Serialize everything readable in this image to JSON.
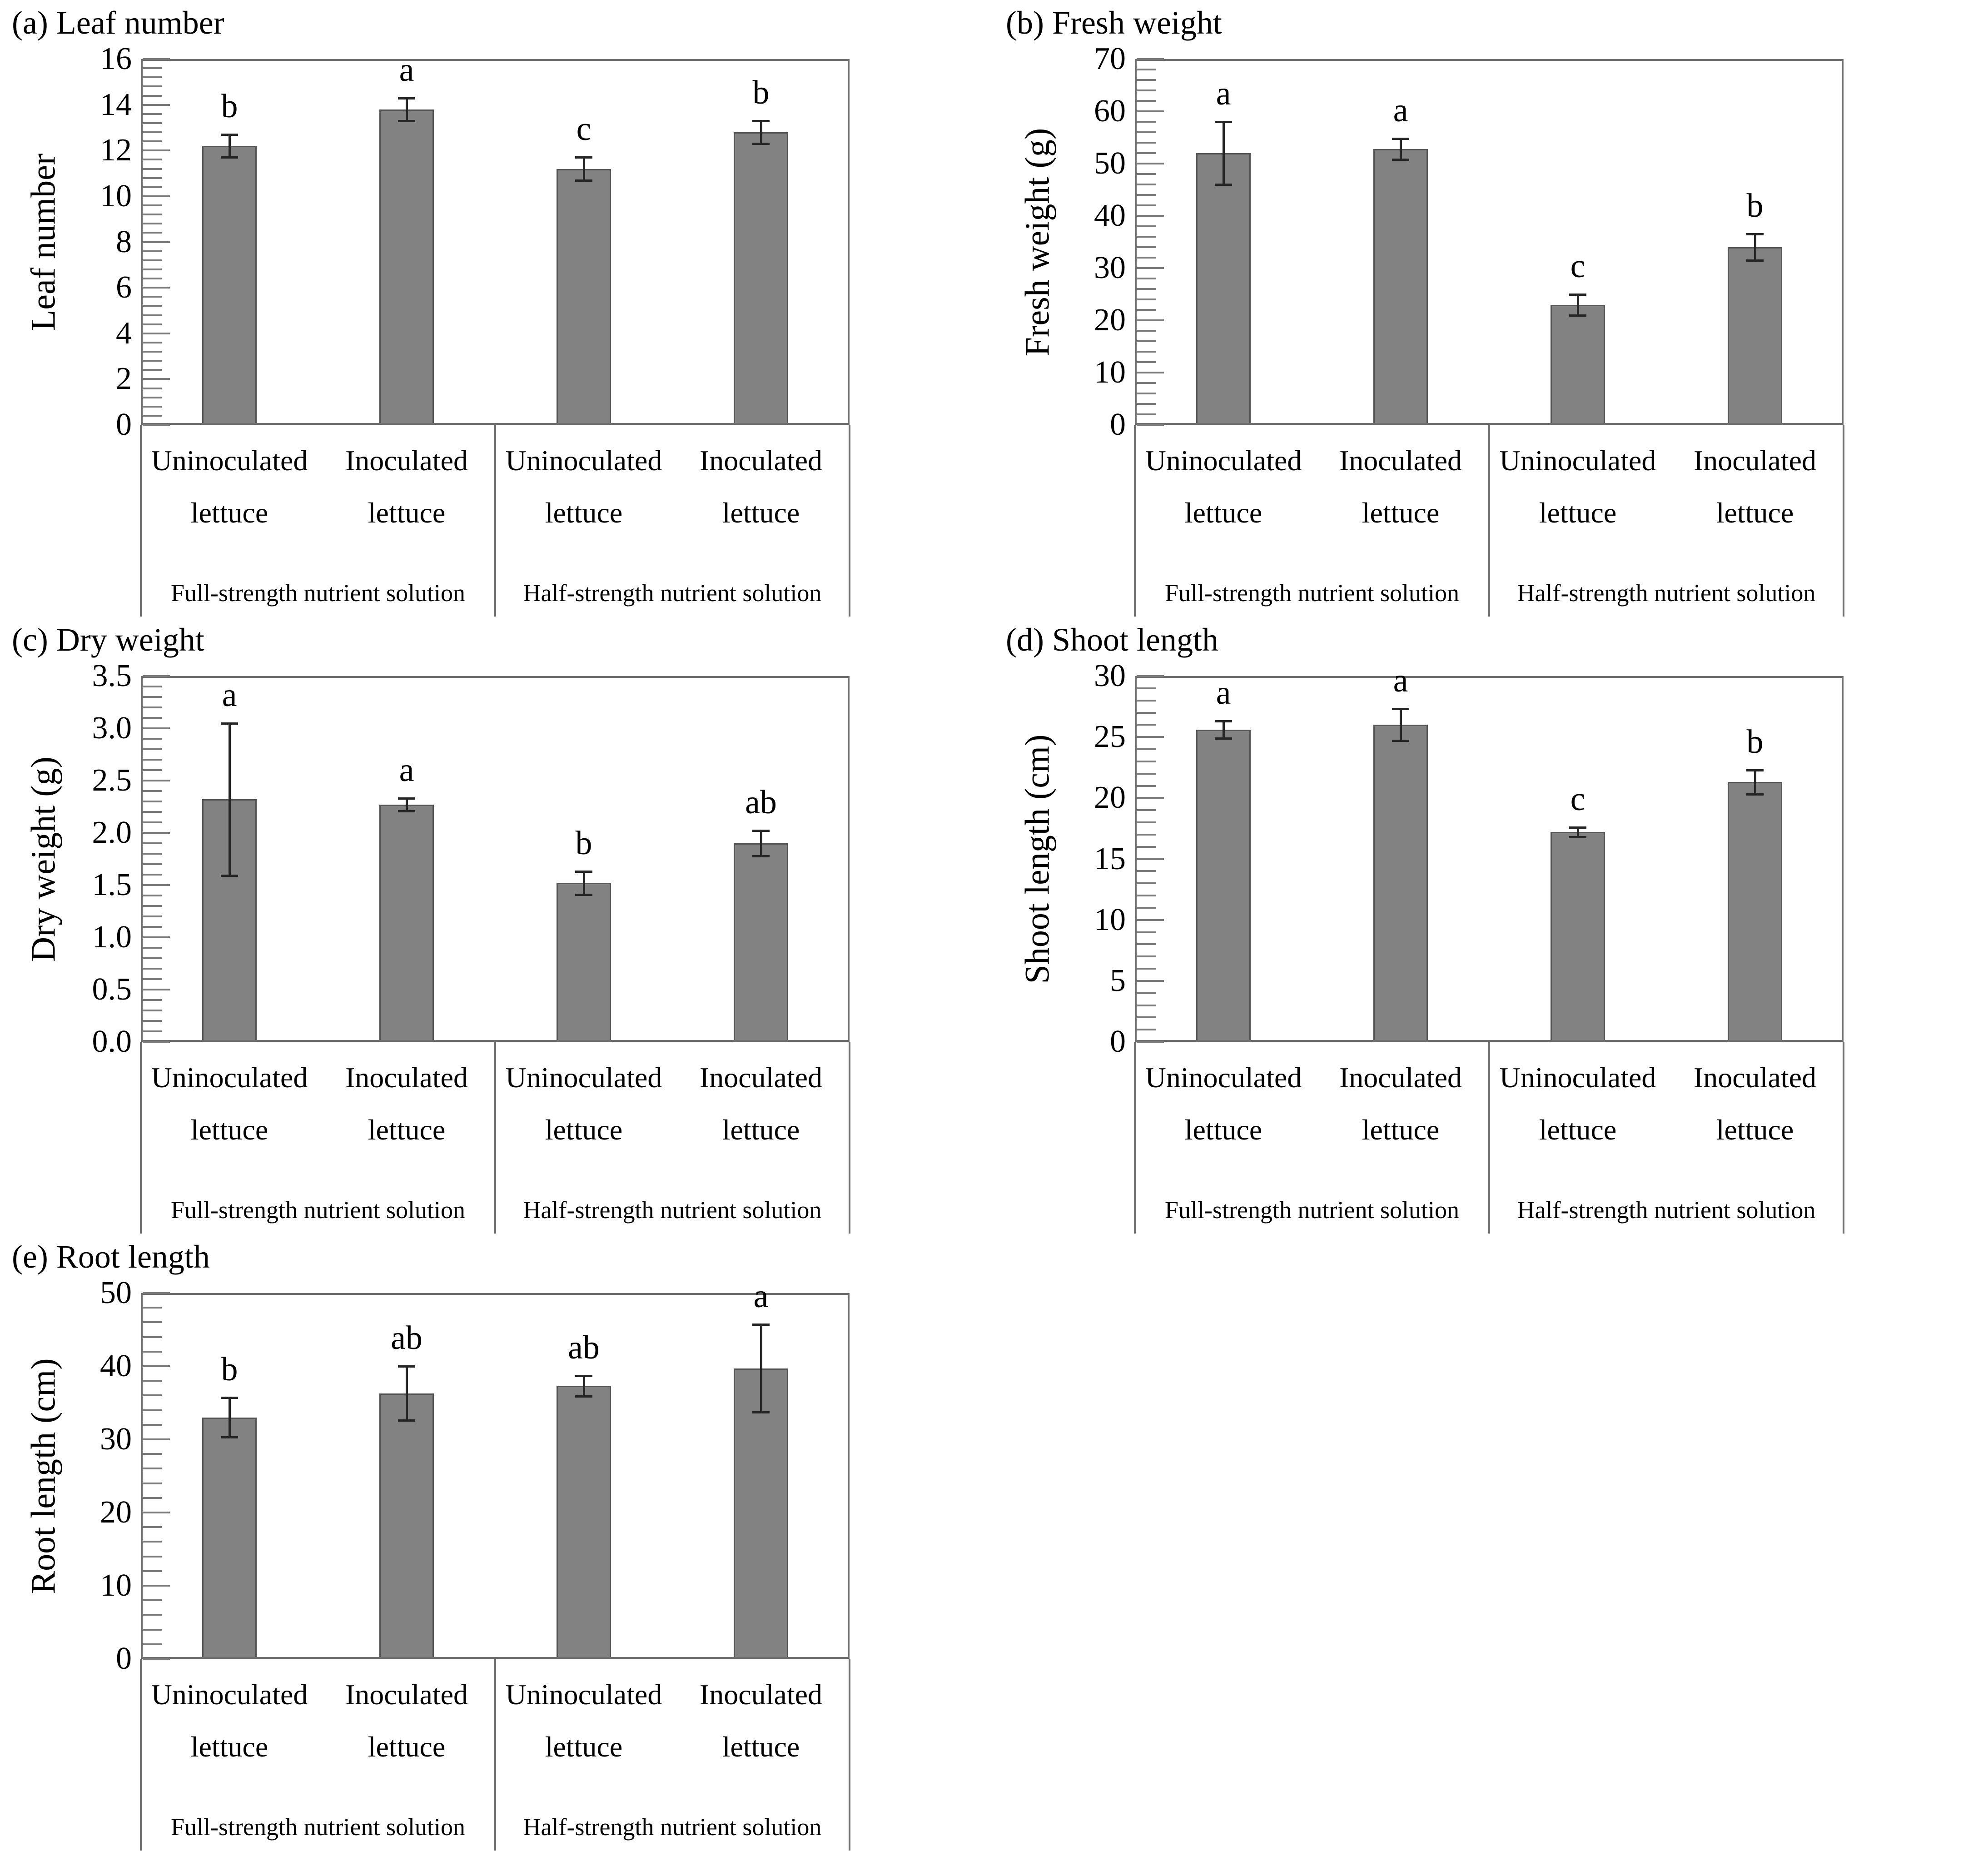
{
  "page": {
    "background": "#ffffff"
  },
  "colors": {
    "bar_fill": "#828282",
    "bar_border": "#555555",
    "frame": "#6e6e6e",
    "tick": "#7a7a7a",
    "error_bar": "#262626",
    "text": "#000000"
  },
  "chart_data": [
    {
      "type": "bar",
      "title": "(a) Leaf number",
      "ylabel": "Leaf number",
      "ylim": [
        0,
        16
      ],
      "ytick_step": 2,
      "minor_tick_step": 0.4,
      "tick_label_decimals": 0,
      "grid": "off",
      "legend": "none",
      "categories": [
        "Uninoculated lettuce",
        "Inoculated lettuce",
        "Uninoculated lettuce",
        "Inoculated lettuce"
      ],
      "group_labels": [
        "Full-strength nutrient solution",
        "Half-strength nutrient solution"
      ],
      "values": [
        12.2,
        13.8,
        11.2,
        12.8
      ],
      "errors": [
        0.5,
        0.5,
        0.5,
        0.5
      ],
      "sig_letters": [
        "b",
        "a",
        "c",
        "b"
      ]
    },
    {
      "type": "bar",
      "title": "(b) Fresh weight",
      "ylabel": "Fresh weight (g)",
      "ylim": [
        0,
        70
      ],
      "ytick_step": 10,
      "minor_tick_step": 2,
      "tick_label_decimals": 0,
      "grid": "off",
      "legend": "none",
      "categories": [
        "Uninoculated lettuce",
        "Inoculated lettuce",
        "Uninoculated lettuce",
        "Inoculated lettuce"
      ],
      "group_labels": [
        "Full-strength nutrient solution",
        "Half-strength nutrient solution"
      ],
      "values": [
        52,
        52.8,
        23,
        34
      ],
      "errors": [
        6,
        2,
        2,
        2.5
      ],
      "sig_letters": [
        "a",
        "a",
        "c",
        "b"
      ]
    },
    {
      "type": "bar",
      "title": "(c) Dry weight",
      "ylabel": "Dry weight (g)",
      "ylim": [
        0,
        3.5
      ],
      "ytick_step": 0.5,
      "minor_tick_step": 0.1,
      "tick_label_decimals": 1,
      "grid": "off",
      "legend": "none",
      "categories": [
        "Uninoculated lettuce",
        "Inoculated lettuce",
        "Uninoculated lettuce",
        "Inoculated lettuce"
      ],
      "group_labels": [
        "Full-strength nutrient solution",
        "Half-strength nutrient solution"
      ],
      "values": [
        2.32,
        2.27,
        1.52,
        1.9
      ],
      "errors": [
        0.73,
        0.06,
        0.11,
        0.12
      ],
      "sig_letters": [
        "a",
        "a",
        "b",
        "ab"
      ]
    },
    {
      "type": "bar",
      "title": "(d) Shoot length",
      "ylabel": "Shoot length (cm)",
      "ylim": [
        0,
        30
      ],
      "ytick_step": 5,
      "minor_tick_step": 1,
      "tick_label_decimals": 0,
      "grid": "off",
      "legend": "none",
      "categories": [
        "Uninoculated lettuce",
        "Inoculated lettuce",
        "Uninoculated lettuce",
        "Inoculated lettuce"
      ],
      "group_labels": [
        "Full-strength nutrient solution",
        "Half-strength nutrient solution"
      ],
      "values": [
        25.6,
        26,
        17.2,
        21.3
      ],
      "errors": [
        0.7,
        1.3,
        0.4,
        1.0
      ],
      "sig_letters": [
        "a",
        "a",
        "c",
        "b"
      ]
    },
    {
      "type": "bar",
      "title": "(e) Root length",
      "ylabel": "Root length (cm)",
      "ylim": [
        0,
        50
      ],
      "ytick_step": 10,
      "minor_tick_step": 2,
      "tick_label_decimals": 0,
      "grid": "off",
      "legend": "none",
      "categories": [
        "Uninoculated lettuce",
        "Inoculated lettuce",
        "Uninoculated lettuce",
        "Inoculated lettuce"
      ],
      "group_labels": [
        "Full-strength nutrient solution",
        "Half-strength nutrient solution"
      ],
      "values": [
        33,
        36.3,
        37.3,
        39.7
      ],
      "errors": [
        2.7,
        3.7,
        1.4,
        6.0
      ],
      "sig_letters": [
        "b",
        "ab",
        "ab",
        "a"
      ]
    }
  ]
}
